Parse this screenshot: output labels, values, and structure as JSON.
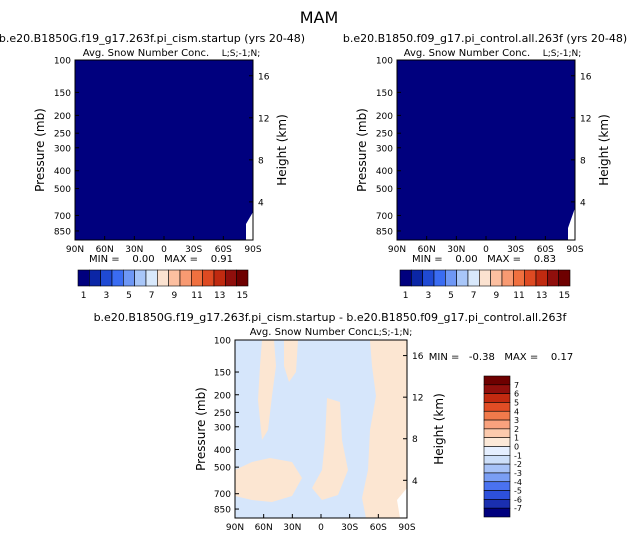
{
  "page_title": "MAM",
  "panels": {
    "p1": {
      "title": "b.e20.B1850G.f19_g17.263f.pi_cism.startup (yrs 20-48)",
      "subtitle": "Avg. Snow Number Conc.",
      "code": "L;S;-1;N;",
      "stats": "MIN =    0.00   MAX =    0.91"
    },
    "p2": {
      "title": "b.e20.B1850.f09_g17.pi_control.all.263f (yrs 20-48)",
      "subtitle": "Avg. Snow Number Conc.",
      "code": "L;S;-1;N;",
      "stats": "MIN =    0.00   MAX =    0.83"
    },
    "p3": {
      "title": "b.e20.B1850G.f19_g17.263f.pi_cism.startup - b.e20.B1850.f09_g17.pi_control.all.263f",
      "subtitle": "Avg. Snow Number Conc.",
      "code": "L;S;-1;N;",
      "stats": "MIN =   -0.38   MAX =    0.17"
    }
  },
  "chart_data": [
    {
      "type": "heatmap",
      "title": "b.e20.B1850G.f19_g17.263f.pi_cism.startup (yrs 20-48)",
      "ylabel": "Pressure (mb)",
      "y2label": "Height (km)",
      "x_ticks": [
        "90N",
        "60N",
        "30N",
        "0",
        "30S",
        "60S",
        "90S"
      ],
      "y_ticks": [
        100,
        150,
        200,
        250,
        300,
        400,
        500,
        700,
        850
      ],
      "y2_ticks": [
        4,
        8,
        12,
        16
      ],
      "min": 0.0,
      "max": 0.91,
      "field": "uniformly lowest level (~0) except small higher values near 90S at 700-850 mb",
      "colorbar_levels": [
        "1",
        "3",
        "5",
        "7",
        "9",
        "11",
        "13",
        "15"
      ]
    },
    {
      "type": "heatmap",
      "title": "b.e20.B1850.f09_g17.pi_control.all.263f (yrs 20-48)",
      "ylabel": "Pressure (mb)",
      "y2label": "Height (km)",
      "x_ticks": [
        "90N",
        "60N",
        "30N",
        "0",
        "30S",
        "60S",
        "90S"
      ],
      "y_ticks": [
        100,
        150,
        200,
        250,
        300,
        400,
        500,
        700,
        850
      ],
      "y2_ticks": [
        4,
        8,
        12,
        16
      ],
      "min": 0.0,
      "max": 0.83,
      "colorbar_levels": [
        "1",
        "3",
        "5",
        "7",
        "9",
        "11",
        "13",
        "15"
      ]
    },
    {
      "type": "heatmap",
      "title": "b.e20.B1850G.f19_g17.263f.pi_cism.startup - b.e20.B1850.f09_g17.pi_control.all.263f",
      "ylabel": "Pressure (mb)",
      "y2label": "Height (km)",
      "x_ticks": [
        "90N",
        "60N",
        "30N",
        "0",
        "30S",
        "60S",
        "90S"
      ],
      "y_ticks": [
        100,
        150,
        200,
        250,
        300,
        400,
        500,
        700,
        850
      ],
      "y2_ticks": [
        4,
        8,
        12,
        16
      ],
      "min": -0.38,
      "max": 0.17,
      "colorbar_levels": [
        "7",
        "6",
        "5",
        "4",
        "3",
        "2",
        "1",
        "0",
        "-1",
        "-2",
        "-3",
        "-4",
        "-5",
        "-6",
        "-7"
      ]
    }
  ],
  "colors": {
    "seq": [
      "#00007e",
      "#0b26a6",
      "#1f4ad4",
      "#3a6cf2",
      "#6e97f5",
      "#a8c6f8",
      "#d8e8fb",
      "#fbe2d0",
      "#fcbfa0",
      "#f89a72",
      "#f0703f",
      "#de4a22",
      "#c02a10",
      "#900f0c",
      "#6e0000"
    ],
    "div": [
      "#00007e",
      "#1a2fb0",
      "#2d50db",
      "#4a72f0",
      "#7a9ef4",
      "#a7c2f7",
      "#cddff9",
      "#e5efff",
      "#fce9d8",
      "#fccaad",
      "#f9a27e",
      "#f17a4b",
      "#e14d25",
      "#c22a10",
      "#900f0c",
      "#6e0000"
    ],
    "blue_fill": "#00007e",
    "neg_fill": "#d6e6fb",
    "pos_fill": "#fce6d2"
  }
}
